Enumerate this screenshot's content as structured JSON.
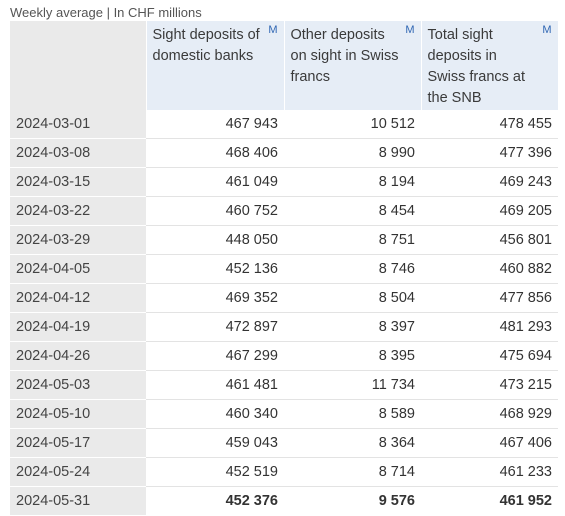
{
  "caption": "Weekly average | In CHF millions",
  "table": {
    "columns": [
      {
        "label": "Sight deposits of domestic banks",
        "marker": "M"
      },
      {
        "label": "Other deposits on sight in Swiss francs",
        "marker": "M"
      },
      {
        "label": "Total sight deposits in Swiss francs at the SNB",
        "marker": "M"
      }
    ],
    "rows": [
      {
        "date": "2024-03-01",
        "sight_domestic": "467 943",
        "other_deposits": "10 512",
        "total": "478 455"
      },
      {
        "date": "2024-03-08",
        "sight_domestic": "468 406",
        "other_deposits": "8 990",
        "total": "477 396"
      },
      {
        "date": "2024-03-15",
        "sight_domestic": "461 049",
        "other_deposits": "8 194",
        "total": "469 243"
      },
      {
        "date": "2024-03-22",
        "sight_domestic": "460 752",
        "other_deposits": "8 454",
        "total": "469 205"
      },
      {
        "date": "2024-03-29",
        "sight_domestic": "448 050",
        "other_deposits": "8 751",
        "total": "456 801"
      },
      {
        "date": "2024-04-05",
        "sight_domestic": "452 136",
        "other_deposits": "8 746",
        "total": "460 882"
      },
      {
        "date": "2024-04-12",
        "sight_domestic": "469 352",
        "other_deposits": "8 504",
        "total": "477 856"
      },
      {
        "date": "2024-04-19",
        "sight_domestic": "472 897",
        "other_deposits": "8 397",
        "total": "481 293"
      },
      {
        "date": "2024-04-26",
        "sight_domestic": "467 299",
        "other_deposits": "8 395",
        "total": "475 694"
      },
      {
        "date": "2024-05-03",
        "sight_domestic": "461 481",
        "other_deposits": "11 734",
        "total": "473 215"
      },
      {
        "date": "2024-05-10",
        "sight_domestic": "460 340",
        "other_deposits": "8 589",
        "total": "468 929"
      },
      {
        "date": "2024-05-17",
        "sight_domestic": "459 043",
        "other_deposits": "8 364",
        "total": "467 406"
      },
      {
        "date": "2024-05-24",
        "sight_domestic": "452 519",
        "other_deposits": "8 714",
        "total": "461 233"
      },
      {
        "date": "2024-05-31",
        "sight_domestic": "452 376",
        "other_deposits": "9 576",
        "total": "461 952"
      }
    ]
  },
  "colors": {
    "header_bg": "#e6edf6",
    "date_col_bg": "#eaeaea",
    "marker": "#2f66b3"
  }
}
